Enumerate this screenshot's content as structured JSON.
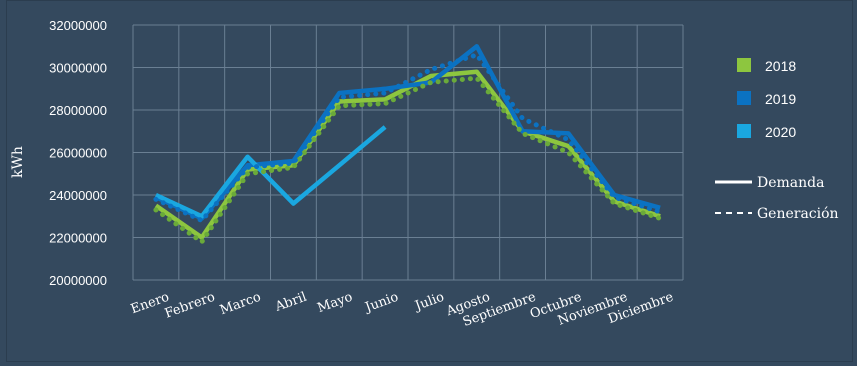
{
  "chart_data": {
    "type": "line",
    "title": "",
    "ylabel": "kWh",
    "xlabel": "",
    "ylim": [
      20000000,
      32000000
    ],
    "yticks": [
      20000000,
      22000000,
      24000000,
      26000000,
      28000000,
      30000000,
      32000000
    ],
    "grid": true,
    "legend_position": "right",
    "categories": [
      "Enero",
      "Febrero",
      "Marco",
      "Abril",
      "Mayo",
      "Junio",
      "Julio",
      "Agosto",
      "Septiembre",
      "Octubre",
      "Noviembre",
      "Diciembre"
    ],
    "series": [
      {
        "name": "2018",
        "kind": "Demanda",
        "color": "#8dc63f",
        "values": [
          23500000,
          22000000,
          25200000,
          25400000,
          28400000,
          28500000,
          29600000,
          29800000,
          27000000,
          26300000,
          23700000,
          23000000
        ]
      },
      {
        "name": "2019",
        "kind": "Demanda",
        "color": "#0b72c2",
        "values": [
          23900000,
          22900000,
          25400000,
          25600000,
          28800000,
          29000000,
          29300000,
          31000000,
          27000000,
          26900000,
          24000000,
          23400000
        ]
      },
      {
        "name": "2020",
        "kind": "Demanda",
        "color": "#1aa7e0",
        "values": [
          24000000,
          23000000,
          25800000,
          23600000,
          25400000,
          27200000,
          null,
          null,
          null,
          null,
          null,
          null
        ]
      },
      {
        "name": "2018",
        "kind": "Generación",
        "color": "#6aaa3a",
        "values": [
          23300000,
          21800000,
          25000000,
          25300000,
          28200000,
          28300000,
          29300000,
          29500000,
          26900000,
          26000000,
          23600000,
          22900000
        ]
      },
      {
        "name": "2019",
        "kind": "Generación",
        "color": "#0b72c2",
        "values": [
          23800000,
          22800000,
          25300000,
          25500000,
          28600000,
          28800000,
          29900000,
          30600000,
          27600000,
          26600000,
          23900000,
          23200000
        ]
      }
    ],
    "legend": {
      "years": [
        {
          "label": "2018",
          "color": "#8dc63f"
        },
        {
          "label": "2019",
          "color": "#0b72c2"
        },
        {
          "label": "2020",
          "color": "#1aa7e0"
        }
      ],
      "styles": [
        {
          "label": "Demanda",
          "style": "solid"
        },
        {
          "label": "Generación",
          "style": "dashed"
        }
      ]
    }
  }
}
